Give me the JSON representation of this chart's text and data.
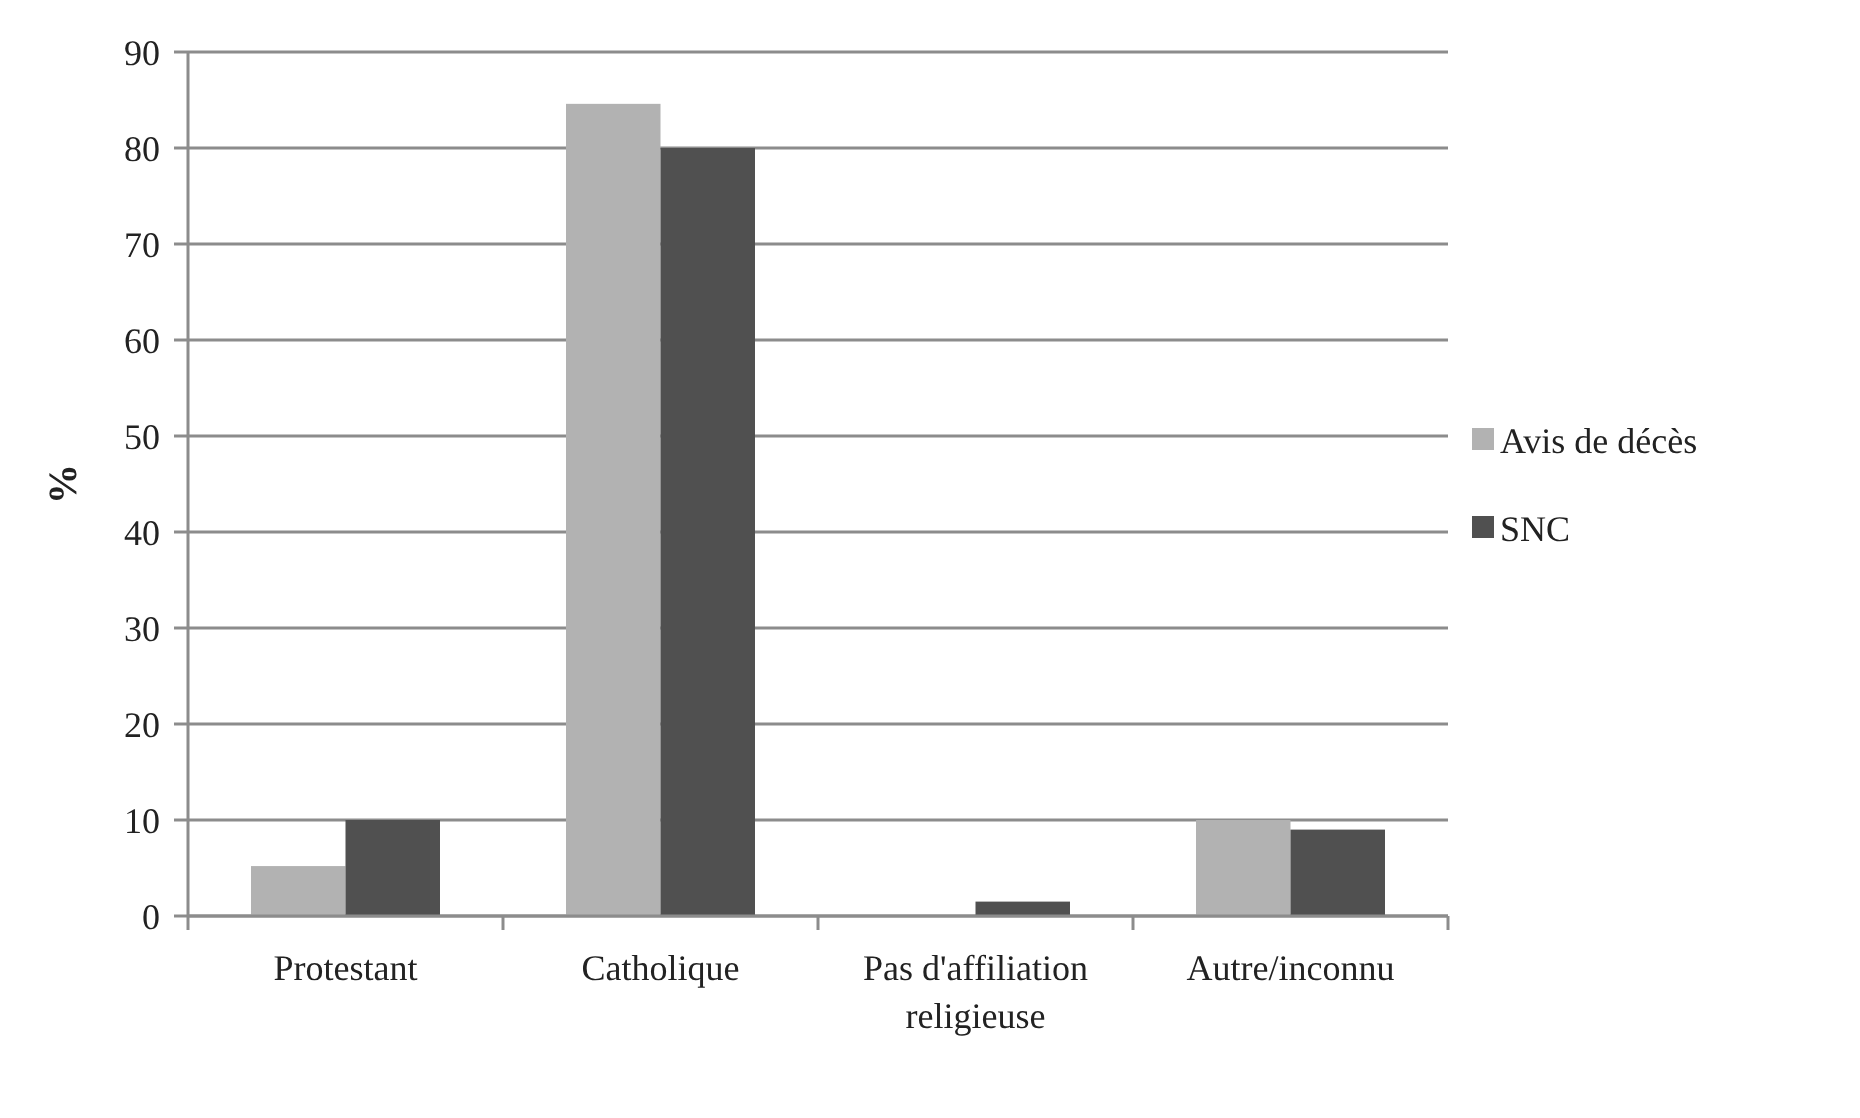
{
  "chart_data": {
    "type": "bar",
    "ylabel": "%",
    "categories": [
      "Protestant",
      "Catholique",
      "Pas d'affiliation religieuse",
      "Autre/inconnu"
    ],
    "series": [
      {
        "name": "Avis de décès",
        "color": "#b2b2b2",
        "values": [
          5.2,
          84.6,
          0,
          10
        ]
      },
      {
        "name": "SNC",
        "color": "#505050",
        "values": [
          10,
          80,
          1.5,
          9
        ]
      }
    ],
    "ylim": [
      0,
      90
    ],
    "yticks": [
      0,
      10,
      20,
      30,
      40,
      50,
      60,
      70,
      80,
      90
    ],
    "grid": "y",
    "legend": "right"
  }
}
